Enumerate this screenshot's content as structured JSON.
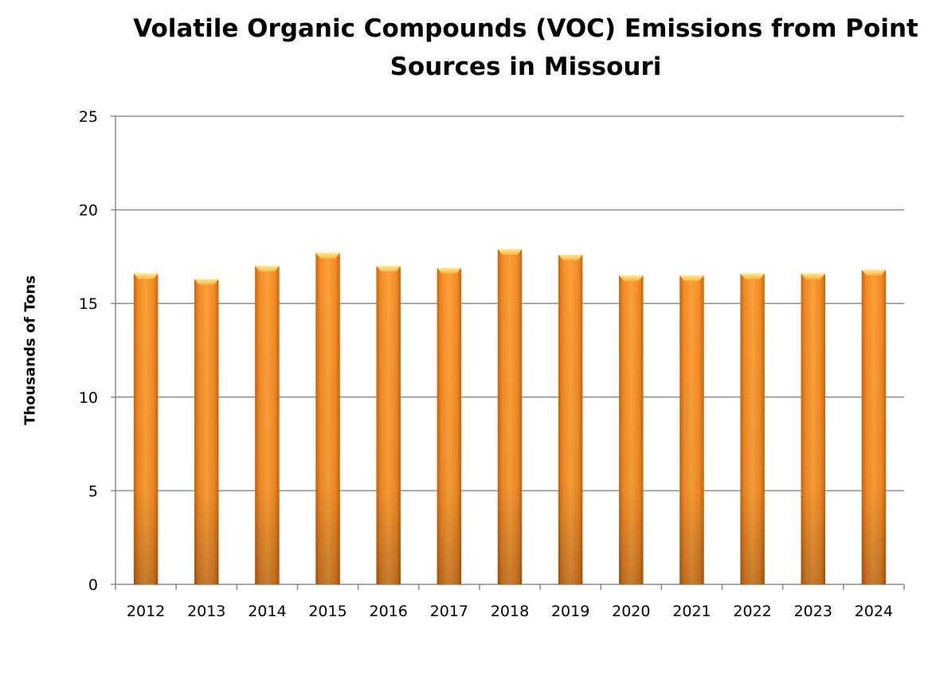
{
  "chart_data": {
    "type": "bar",
    "title": "Volatile Organic Compounds (VOC) Emissions from Point Sources in Missouri",
    "xlabel": "",
    "ylabel": "Thousands of Tons",
    "categories": [
      "2012",
      "2013",
      "2014",
      "2015",
      "2016",
      "2017",
      "2018",
      "2019",
      "2020",
      "2021",
      "2022",
      "2023",
      "2024"
    ],
    "values": [
      16.6,
      16.3,
      17.0,
      17.7,
      17.0,
      16.9,
      17.9,
      17.6,
      16.5,
      16.5,
      16.6,
      16.6,
      16.8
    ],
    "ylim": [
      0,
      25
    ],
    "yticks": [
      0,
      5,
      10,
      15,
      20,
      25
    ],
    "grid": true,
    "bar_color": "#F7962B"
  }
}
